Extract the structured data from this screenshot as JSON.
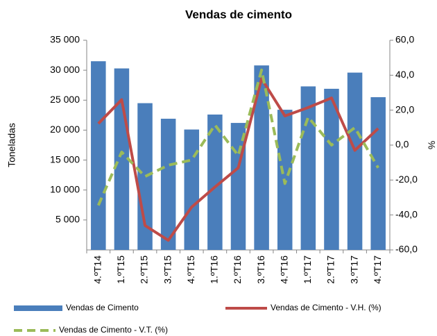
{
  "chart_data": {
    "type": "bar_line",
    "title": "Vendas de cimento",
    "ylabel": "Toneladas",
    "y2label": "%",
    "categories": [
      "4.ºT14",
      "1.ºT15",
      "2.ºT15",
      "3.ºT15",
      "4.ºT15",
      "1.ºT16",
      "2.ºT16",
      "3.ºT16",
      "4.ºT16",
      "1.ºT17",
      "2.ºT17",
      "3.ºT17",
      "4.ºT17"
    ],
    "series": [
      {
        "name": "Vendas de Cimento",
        "type": "bar",
        "color": "#4a7ebb",
        "values": [
          31500,
          30300,
          24500,
          21900,
          20100,
          22600,
          21200,
          30800,
          23400,
          27300,
          26900,
          29600,
          25500
        ]
      },
      {
        "name": "Vendas de Cimento - V.H. (%)",
        "type": "line",
        "axis": "y2",
        "color": "#be4b48",
        "values": [
          12.3,
          26,
          -46,
          -54.5,
          -35.5,
          -24,
          -13,
          38,
          16.7,
          21.5,
          27,
          -3,
          9.5
        ]
      },
      {
        "name": "Vendas de Cimento - V.T. (%)",
        "type": "line",
        "dashed": true,
        "axis": "y2",
        "color": "#9bbb59",
        "values": [
          -34.5,
          -4,
          -18,
          -11.5,
          -8.5,
          11.5,
          -6,
          43,
          -22,
          16,
          0,
          10,
          -13
        ]
      }
    ],
    "ylim": [
      0,
      35000
    ],
    "yticks": [
      {
        "value": 5000,
        "label": "5 000"
      },
      {
        "value": 10000,
        "label": "10 000"
      },
      {
        "value": 15000,
        "label": "15 000"
      },
      {
        "value": 20000,
        "label": "20 000"
      },
      {
        "value": 25000,
        "label": "25 000"
      },
      {
        "value": 30000,
        "label": "30 000"
      },
      {
        "value": 35000,
        "label": "35 000"
      }
    ],
    "y2lim": [
      -60,
      60
    ],
    "y2ticks": [
      {
        "value": -60,
        "label": "-60,0"
      },
      {
        "value": -40,
        "label": "-40,0"
      },
      {
        "value": -20,
        "label": "-20,0"
      },
      {
        "value": 0,
        "label": "0,0"
      },
      {
        "value": 20,
        "label": "20,0"
      },
      {
        "value": 40,
        "label": "40,0"
      },
      {
        "value": 60,
        "label": "60,0"
      }
    ]
  }
}
